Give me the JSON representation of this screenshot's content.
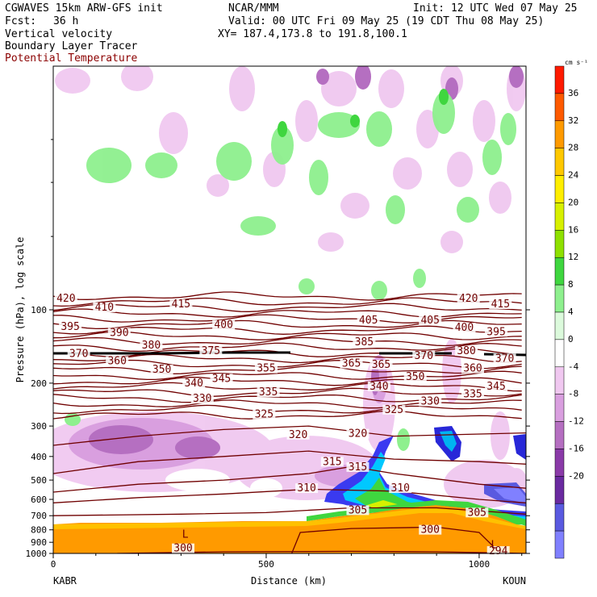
{
  "header": {
    "model": "CGWAVES 15km ARW-GFS init",
    "center": "NCAR/MMM",
    "init": "Init: 12 UTC Wed 07 May 25",
    "fcst_label": "Fcst:",
    "fcst_value": "36 h",
    "valid": "Valid: 00 UTC Fri 09 May 25 (19 CDT Thu 08 May 25)",
    "field1": "Vertical velocity",
    "field2": "Boundary Layer Tracer",
    "field3": "Potential Temperature",
    "xy": "XY= 187.4,173.8 to 191.8,100.1",
    "field3_color": "#8b0000"
  },
  "chart_data": {
    "type": "heatmap",
    "ylabel": "Pressure (hPa), log scale",
    "xlabel": "Distance (km)",
    "x_range": [
      0,
      1110
    ],
    "y_range_hpa": [
      1000,
      10
    ],
    "y_scale": "log",
    "x_ticks": [
      {
        "value": 0,
        "label": "0"
      },
      {
        "value": 500,
        "label": "500"
      },
      {
        "value": 1000,
        "label": "1000"
      }
    ],
    "y_ticks": [
      {
        "value": 100,
        "label": "100"
      },
      {
        "value": 200,
        "label": "200"
      },
      {
        "value": 300,
        "label": "300"
      },
      {
        "value": 400,
        "label": "400"
      },
      {
        "value": 500,
        "label": "500"
      },
      {
        "value": 600,
        "label": "600"
      },
      {
        "value": 700,
        "label": "700"
      },
      {
        "value": 800,
        "label": "800"
      },
      {
        "value": 900,
        "label": "900"
      },
      {
        "value": 1000,
        "label": "1000"
      }
    ],
    "endpoints": {
      "left": "KABR",
      "right": "KOUN"
    },
    "colorbar": {
      "units": "cm s⁻¹",
      "levels": [
        {
          "label": "36",
          "color": "#ff1a00"
        },
        {
          "label": "32",
          "color": "#ff5a00"
        },
        {
          "label": "28",
          "color": "#ff9a00"
        },
        {
          "label": "24",
          "color": "#ffc800"
        },
        {
          "label": "20",
          "color": "#ffee00"
        },
        {
          "label": "16",
          "color": "#d7f000"
        },
        {
          "label": "12",
          "color": "#8ee000"
        },
        {
          "label": "8",
          "color": "#3fd63f"
        },
        {
          "label": "4",
          "color": "#8ef08e"
        },
        {
          "label": "0",
          "color": "#dcfadc"
        },
        {
          "label": "-4",
          "color": "#ffffff"
        },
        {
          "label": "-8",
          "color": "#f0c8f0"
        },
        {
          "label": "-12",
          "color": "#d99fdf"
        },
        {
          "label": "-16",
          "color": "#b56fc1"
        },
        {
          "label": "-20",
          "color": "#8a3aa8"
        },
        {
          "label": "",
          "color": "#6a2aa0"
        },
        {
          "label": "",
          "color": "#5a5ae0"
        },
        {
          "label": "",
          "color": "#8080ff"
        }
      ]
    },
    "theta_labels": [
      {
        "text": "420",
        "x": 30,
        "p": 92
      },
      {
        "text": "420",
        "x": 975,
        "p": 92
      },
      {
        "text": "415",
        "x": 300,
        "p": 97
      },
      {
        "text": "415",
        "x": 1050,
        "p": 97
      },
      {
        "text": "410",
        "x": 120,
        "p": 100
      },
      {
        "text": "405",
        "x": 740,
        "p": 113
      },
      {
        "text": "405",
        "x": 885,
        "p": 113
      },
      {
        "text": "400",
        "x": 400,
        "p": 118
      },
      {
        "text": "400",
        "x": 965,
        "p": 121
      },
      {
        "text": "395",
        "x": 40,
        "p": 120
      },
      {
        "text": "395",
        "x": 1040,
        "p": 126
      },
      {
        "text": "390",
        "x": 155,
        "p": 127
      },
      {
        "text": "385",
        "x": 730,
        "p": 139
      },
      {
        "text": "380",
        "x": 230,
        "p": 143
      },
      {
        "text": "380",
        "x": 970,
        "p": 151
      },
      {
        "text": "375",
        "x": 370,
        "p": 151
      },
      {
        "text": "370",
        "x": 60,
        "p": 155
      },
      {
        "text": "370",
        "x": 870,
        "p": 158
      },
      {
        "text": "370",
        "x": 1060,
        "p": 162
      },
      {
        "text": "360",
        "x": 150,
        "p": 166
      },
      {
        "text": "360",
        "x": 985,
        "p": 178
      },
      {
        "text": "365",
        "x": 700,
        "p": 170
      },
      {
        "text": "365",
        "x": 770,
        "p": 172
      },
      {
        "text": "355",
        "x": 500,
        "p": 178
      },
      {
        "text": "350",
        "x": 255,
        "p": 180
      },
      {
        "text": "350",
        "x": 850,
        "p": 193
      },
      {
        "text": "345",
        "x": 395,
        "p": 196
      },
      {
        "text": "345",
        "x": 1040,
        "p": 211
      },
      {
        "text": "340",
        "x": 330,
        "p": 205
      },
      {
        "text": "340",
        "x": 765,
        "p": 211
      },
      {
        "text": "335",
        "x": 505,
        "p": 223
      },
      {
        "text": "335",
        "x": 985,
        "p": 227
      },
      {
        "text": "330",
        "x": 350,
        "p": 237
      },
      {
        "text": "330",
        "x": 885,
        "p": 243
      },
      {
        "text": "325",
        "x": 495,
        "p": 275
      },
      {
        "text": "325",
        "x": 800,
        "p": 263
      },
      {
        "text": "320",
        "x": 575,
        "p": 333
      },
      {
        "text": "320",
        "x": 715,
        "p": 330
      },
      {
        "text": "315",
        "x": 655,
        "p": 430
      },
      {
        "text": "315",
        "x": 715,
        "p": 452
      },
      {
        "text": "310",
        "x": 595,
        "p": 552
      },
      {
        "text": "310",
        "x": 815,
        "p": 552
      },
      {
        "text": "305",
        "x": 715,
        "p": 680
      },
      {
        "text": "305",
        "x": 995,
        "p": 695
      },
      {
        "text": "300",
        "x": 885,
        "p": 818
      },
      {
        "text": "300",
        "x": 305,
        "p": 975
      },
      {
        "text": "294",
        "x": 1045,
        "p": 1000
      },
      {
        "text": "L",
        "x": 310,
        "p": 855
      },
      {
        "text": "L",
        "x": 1035,
        "p": 945
      }
    ]
  }
}
